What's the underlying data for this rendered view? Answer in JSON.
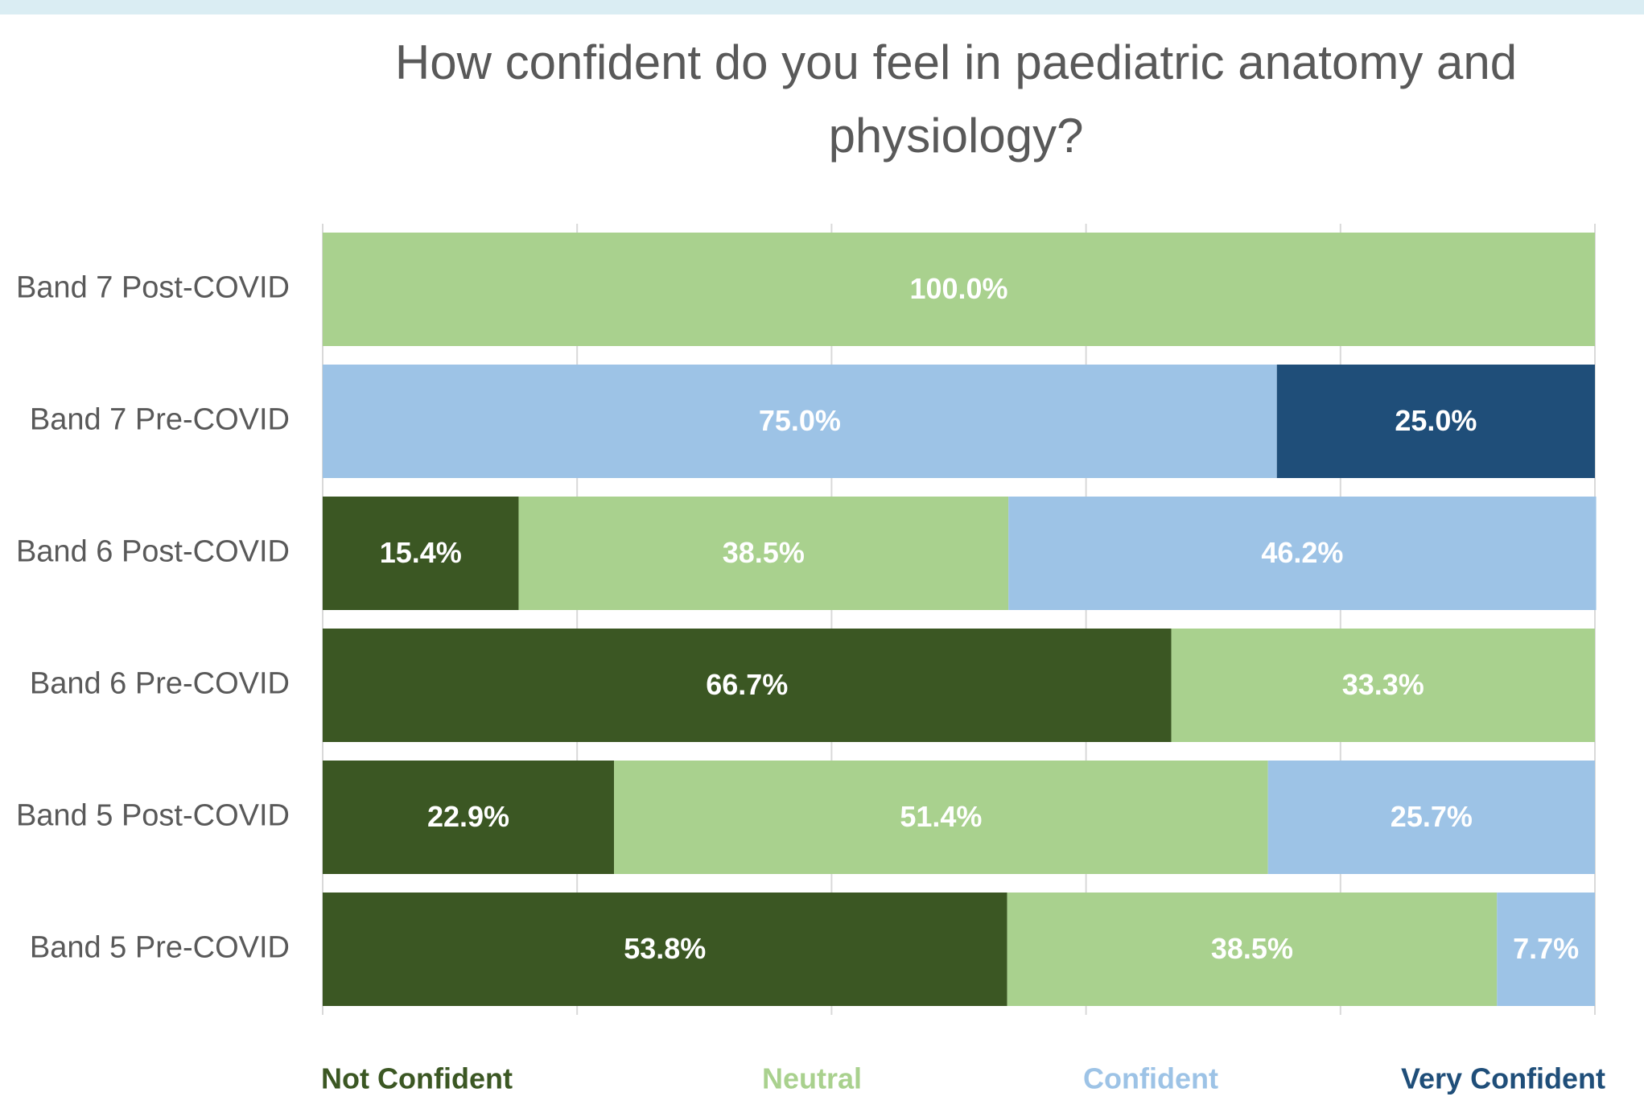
{
  "chart_data": {
    "type": "stacked-bar-horizontal",
    "title": "How confident do you feel in paediatric anatomy and physiology?",
    "categories": [
      "Band 7 Post-COVID",
      "Band 7 Pre-COVID",
      "Band 6 Post-COVID",
      "Band 6 Pre-COVID",
      "Band 5 Post-COVID",
      "Band 5 Pre-COVID"
    ],
    "series": [
      {
        "name": "Not Confident",
        "color": "#3b5723",
        "values": [
          0,
          0,
          15.4,
          66.7,
          22.9,
          53.8
        ],
        "value_labels": [
          null,
          null,
          "15.4%",
          "66.7%",
          "22.9%",
          "53.8%"
        ]
      },
      {
        "name": "Neutral",
        "color": "#a9d18e",
        "values": [
          100,
          0,
          38.5,
          33.3,
          51.4,
          38.5
        ],
        "value_labels": [
          "100.0%",
          null,
          "38.5%",
          "33.3%",
          "51.4%",
          "38.5%"
        ]
      },
      {
        "name": "Confident",
        "color": "#9dc3e6",
        "values": [
          0,
          75,
          46.2,
          0,
          25.7,
          7.7
        ],
        "value_labels": [
          null,
          "75.0%",
          "46.2%",
          null,
          "25.7%",
          "7.7%"
        ]
      },
      {
        "name": "Very Confident",
        "color": "#1f4e79",
        "values": [
          0,
          25,
          0,
          0,
          0,
          0
        ],
        "value_labels": [
          null,
          "25.0%",
          null,
          null,
          null,
          null
        ]
      }
    ],
    "xlim": [
      0,
      100
    ],
    "xticks": [
      0,
      20,
      40,
      60,
      80,
      100
    ],
    "grid": true,
    "legend": "bottom"
  }
}
